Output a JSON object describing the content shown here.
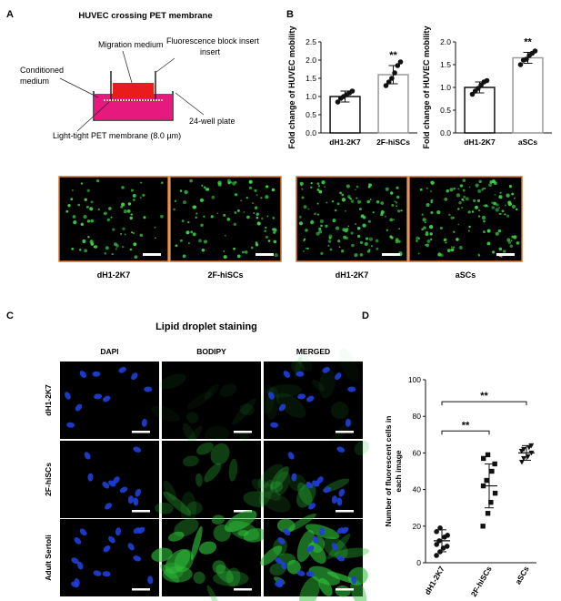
{
  "panel_labels": {
    "a": "A",
    "b": "B",
    "c": "C",
    "d": "D"
  },
  "panel_a": {
    "title": "HUVEC crossing PET membrane",
    "labels": {
      "migration_medium": "Migration medium",
      "fluorescence_block_insert": "Fluorescence block insert",
      "conditioned_medium": "Conditioned medium",
      "well_plate": "24-well plate",
      "pet_membrane": "Light-tight PET membrane (8.0 µm)"
    },
    "colors": {
      "top_medium": "#e81c1c",
      "well_medium": "#e6197e"
    }
  },
  "migration_images": {
    "captions": [
      "dH1-2K7",
      "2F-hiSCs",
      "dH1-2K7",
      "aSCs"
    ],
    "border_color": "#d8742a",
    "cell_color": "#3fd24a"
  },
  "panel_c": {
    "title": "Lipid droplet staining",
    "columns": [
      "DAPI",
      "BODIPY",
      "MERGED"
    ],
    "rows": [
      "dH1-2K7",
      "2F-hiSCs",
      "Adult Sertoli"
    ]
  },
  "chart_data": [
    {
      "type": "bar",
      "panel": "B",
      "ylabel": "Fold change of HUVEC mobility",
      "categories": [
        "dH1-2K7",
        "2F-hiSCs"
      ],
      "values": [
        1.0,
        1.6
      ],
      "sd": [
        0.15,
        0.25
      ],
      "points": [
        [
          0.85,
          0.95,
          1.0,
          1.05,
          1.1,
          1.15
        ],
        [
          1.3,
          1.4,
          1.5,
          1.65,
          1.85,
          1.95
        ]
      ],
      "ylim": [
        0,
        2.5
      ],
      "yticks": [
        "0.0",
        "0.5",
        "1.0",
        "1.5",
        "2.0",
        "2.5"
      ],
      "annotations": [
        "**"
      ],
      "bar_colors": [
        "#111111",
        "#9a9a9a"
      ]
    },
    {
      "type": "bar",
      "panel": "B",
      "ylabel": "Fold change of HUVEC mobility",
      "categories": [
        "dH1-2K7",
        "aSCs"
      ],
      "values": [
        1.0,
        1.65
      ],
      "sd": [
        0.12,
        0.12
      ],
      "points": [
        [
          0.85,
          0.92,
          0.98,
          1.05,
          1.12,
          1.15
        ],
        [
          1.5,
          1.6,
          1.62,
          1.7,
          1.75,
          1.8
        ]
      ],
      "ylim": [
        0,
        2.0
      ],
      "yticks": [
        "0.0",
        "0.5",
        "1.0",
        "1.5",
        "2.0"
      ],
      "annotations": [
        "**"
      ],
      "bar_colors": [
        "#111111",
        "#9a9a9a"
      ]
    },
    {
      "type": "scatter",
      "panel": "D",
      "ylabel": "Number of fluorescent cells in each image",
      "categories": [
        "dH1-2K7",
        "2F-hiSCs",
        "aSCs"
      ],
      "means": [
        12,
        42,
        60
      ],
      "sd": [
        6,
        12,
        4
      ],
      "points": [
        [
          4,
          6,
          8,
          9,
          10,
          12,
          14,
          15,
          17,
          19
        ],
        [
          20,
          27,
          33,
          38,
          42,
          45,
          50,
          54,
          57,
          59
        ],
        [
          55,
          57,
          58,
          60,
          61,
          62,
          63,
          64
        ]
      ],
      "ylim": [
        0,
        100
      ],
      "yticks": [
        "0",
        "20",
        "40",
        "60",
        "80",
        "100"
      ],
      "annotations": [
        "**",
        "**"
      ],
      "markers": [
        "circle",
        "square",
        "triangle"
      ]
    }
  ]
}
